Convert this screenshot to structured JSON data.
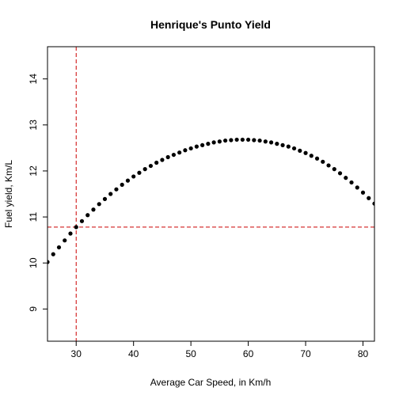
{
  "chart_data": {
    "type": "scatter",
    "title": "Henrique's Punto Yield",
    "xlabel": "Average Car Speed, in Km/h",
    "ylabel": "Fuel yield, Km/L",
    "xlim": [
      25,
      82
    ],
    "ylim": [
      8.3,
      14.7
    ],
    "x_ticks": [
      30,
      40,
      50,
      60,
      70,
      80
    ],
    "y_ticks": [
      9,
      10,
      11,
      12,
      13,
      14
    ],
    "x_tick_labels": [
      "30",
      "40",
      "50",
      "60",
      "70",
      "80"
    ],
    "y_tick_labels": [
      "9",
      "10",
      "11",
      "12",
      "13",
      "14"
    ],
    "grid": false,
    "series": [
      {
        "x": [
          25,
          26,
          27,
          28,
          29,
          30,
          31,
          32,
          33,
          34,
          35,
          36,
          37,
          38,
          39,
          40,
          41,
          42,
          43,
          44,
          45,
          46,
          47,
          48,
          49,
          50,
          51,
          52,
          53,
          54,
          55,
          56,
          57,
          58,
          59,
          60,
          61,
          62,
          63,
          64,
          65,
          66,
          67,
          68,
          69,
          70,
          71,
          72,
          73,
          74,
          75,
          76,
          77,
          78,
          79,
          80,
          81,
          82
        ],
        "y": [
          10.02,
          10.19,
          10.34,
          10.49,
          10.64,
          10.78,
          10.91,
          11.04,
          11.16,
          11.28,
          11.39,
          11.5,
          11.6,
          11.7,
          11.79,
          11.88,
          11.96,
          12.04,
          12.11,
          12.18,
          12.24,
          12.3,
          12.35,
          12.4,
          12.45,
          12.49,
          12.53,
          12.56,
          12.59,
          12.62,
          12.64,
          12.66,
          12.67,
          12.68,
          12.68,
          12.68,
          12.67,
          12.66,
          12.64,
          12.62,
          12.59,
          12.56,
          12.53,
          12.49,
          12.44,
          12.39,
          12.33,
          12.27,
          12.2,
          12.12,
          12.04,
          11.95,
          11.85,
          11.75,
          11.64,
          11.53,
          11.41,
          11.29
        ]
      }
    ],
    "reference_lines": {
      "vertical_x": 30,
      "horizontal_y": 10.78,
      "color": "#cc0000",
      "style": "dashed"
    },
    "point_color": "#000000"
  }
}
